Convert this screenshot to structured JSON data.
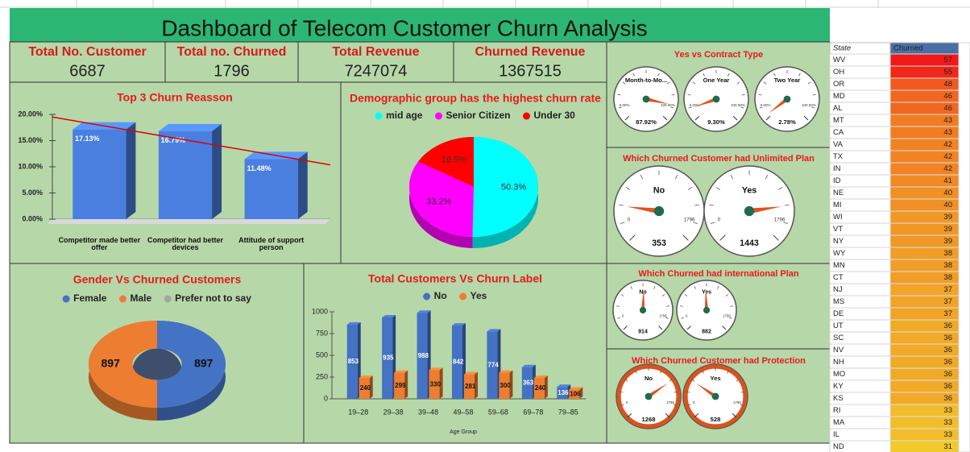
{
  "title": "Dashboard of Telecom Customer Churn Analysis",
  "kpis": [
    {
      "label": "Total No. Customer",
      "value": 6687
    },
    {
      "label": "Total no. Churned",
      "value": 1796
    },
    {
      "label": "Total Revenue",
      "value": 7247074
    },
    {
      "label": "Churned Revenue",
      "value": 1367515
    }
  ],
  "chart_data": [
    {
      "type": "bar",
      "title": "Top 3 Churn Reasson",
      "categories": [
        "Competitor made better offer",
        "Competitor had better devices",
        "Attitude of support person"
      ],
      "values": [
        17.13,
        16.79,
        11.48
      ],
      "value_labels": [
        "17.13%",
        "16.79%",
        "11.48%"
      ],
      "color": "#4a7fe0",
      "trendline_color": "#e00000",
      "ylim": [
        0,
        20
      ],
      "yticks": [
        {
          "value": 0,
          "label": "0.00%"
        },
        {
          "value": 5,
          "label": "5.00%"
        },
        {
          "value": 10,
          "label": "10.00%"
        },
        {
          "value": 15,
          "label": "15.00%"
        },
        {
          "value": 20,
          "label": "20.00%"
        }
      ]
    },
    {
      "type": "pie",
      "title": "Demographic group has the highest churn rate",
      "categories": [
        "mid age",
        "Senior Citizen",
        "Under 30"
      ],
      "values": [
        50.3,
        33.2,
        16.5
      ],
      "value_labels": [
        "50.3%",
        "33.2%",
        "16.5%"
      ],
      "colors": [
        "#00ffff",
        "#ff00ff",
        "#ff0000"
      ]
    },
    {
      "type": "donut",
      "title": "Gender Vs Churned Customers",
      "categories": [
        "Female",
        "Male",
        "Prefer not to say"
      ],
      "values": [
        897,
        897,
        0
      ],
      "colors": [
        "#4472c4",
        "#ed7d31",
        "#a5a5a5"
      ]
    },
    {
      "type": "grouped_bar",
      "title": "Total Customers Vs Churn Label",
      "x_label": "Age Group",
      "categories": [
        "19–28",
        "29–38",
        "39–48",
        "49–58",
        "59–68",
        "69–78",
        "79–85"
      ],
      "series": [
        {
          "name": "No",
          "color": "#4472c4",
          "values": [
            853,
            935,
            988,
            842,
            774,
            363,
            136
          ]
        },
        {
          "name": "Yes",
          "color": "#ed7d31",
          "values": [
            240,
            299,
            330,
            281,
            300,
            240,
            106
          ]
        }
      ],
      "ylim": [
        0,
        1000
      ],
      "yticks": [
        0,
        250,
        500,
        750,
        1000
      ]
    }
  ],
  "gauge_panels": [
    {
      "title": "Yes vs Contract Type",
      "scale": {
        "min": {
          "value": 0,
          "label": "0.00%"
        },
        "max": {
          "value": 100,
          "label": "100.00%"
        }
      },
      "gauges": [
        {
          "label": "Month-to-Mo...",
          "value": 87.92,
          "value_label": "87.92%"
        },
        {
          "label": "One Year",
          "value": 9.3,
          "value_label": "9.30%"
        },
        {
          "label": "Two Year",
          "value": 2.78,
          "value_label": "2.78%"
        }
      ]
    },
    {
      "title": "Which Churned Customer had Unlimited Plan",
      "scale": {
        "min": 0,
        "max": 1796
      },
      "gauges": [
        {
          "label": "No",
          "value": 353
        },
        {
          "label": "Yes",
          "value": 1443
        }
      ]
    },
    {
      "title": "Which Churned had international Plan",
      "scale": {
        "min": 0,
        "max": 1796
      },
      "gauges": [
        {
          "label": "No",
          "value": 914
        },
        {
          "label": "Yes",
          "value": 882
        }
      ]
    },
    {
      "title": "Which Churned Customer had Protection",
      "scale": {
        "min": 0,
        "max": 1796
      },
      "rim_color": "#d9531e",
      "gauges": [
        {
          "label": "No",
          "value": 1268
        },
        {
          "label": "Yes",
          "value": 528
        }
      ]
    }
  ],
  "state_table": {
    "columns": [
      "State",
      "Churned"
    ],
    "rows": [
      [
        "WV",
        57
      ],
      [
        "OH",
        55
      ],
      [
        "OR",
        48
      ],
      [
        "MD",
        46
      ],
      [
        "AL",
        46
      ],
      [
        "MT",
        43
      ],
      [
        "CA",
        43
      ],
      [
        "VA",
        42
      ],
      [
        "TX",
        42
      ],
      [
        "IN",
        42
      ],
      [
        "ID",
        41
      ],
      [
        "NE",
        40
      ],
      [
        "MI",
        40
      ],
      [
        "WI",
        39
      ],
      [
        "VT",
        39
      ],
      [
        "NY",
        39
      ],
      [
        "WY",
        38
      ],
      [
        "MN",
        38
      ],
      [
        "CT",
        38
      ],
      [
        "NJ",
        37
      ],
      [
        "MS",
        37
      ],
      [
        "DE",
        37
      ],
      [
        "UT",
        36
      ],
      [
        "SC",
        36
      ],
      [
        "NV",
        36
      ],
      [
        "NH",
        36
      ],
      [
        "MO",
        36
      ],
      [
        "KY",
        36
      ],
      [
        "KS",
        36
      ],
      [
        "RI",
        33
      ],
      [
        "MA",
        33
      ],
      [
        "IL",
        33
      ],
      [
        "ND",
        31
      ]
    ]
  }
}
